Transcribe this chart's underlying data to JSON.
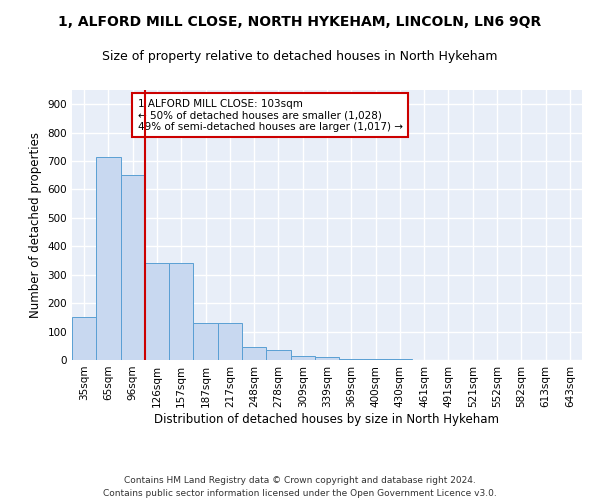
{
  "title": "1, ALFORD MILL CLOSE, NORTH HYKEHAM, LINCOLN, LN6 9QR",
  "subtitle": "Size of property relative to detached houses in North Hykeham",
  "xlabel": "Distribution of detached houses by size in North Hykeham",
  "ylabel": "Number of detached properties",
  "bar_values": [
    150,
    715,
    650,
    340,
    340,
    130,
    130,
    45,
    35,
    15,
    12,
    5,
    5,
    2,
    0,
    0,
    0,
    0,
    0,
    0,
    0
  ],
  "categories": [
    "35sqm",
    "65sqm",
    "96sqm",
    "126sqm",
    "157sqm",
    "187sqm",
    "217sqm",
    "248sqm",
    "278sqm",
    "309sqm",
    "339sqm",
    "369sqm",
    "400sqm",
    "430sqm",
    "461sqm",
    "491sqm",
    "521sqm",
    "552sqm",
    "582sqm",
    "613sqm",
    "643sqm"
  ],
  "bar_color": "#c8d8f0",
  "bar_edge_color": "#5a9fd4",
  "vline_color": "#cc0000",
  "annotation_text": "1 ALFORD MILL CLOSE: 103sqm\n← 50% of detached houses are smaller (1,028)\n49% of semi-detached houses are larger (1,017) →",
  "annotation_box_color": "white",
  "annotation_box_edge": "#cc0000",
  "ylim": [
    0,
    950
  ],
  "yticks": [
    0,
    100,
    200,
    300,
    400,
    500,
    600,
    700,
    800,
    900
  ],
  "footer_line1": "Contains HM Land Registry data © Crown copyright and database right 2024.",
  "footer_line2": "Contains public sector information licensed under the Open Government Licence v3.0.",
  "bg_color": "#e8eef8",
  "grid_color": "#ffffff",
  "title_fontsize": 10,
  "subtitle_fontsize": 9,
  "axis_label_fontsize": 8.5,
  "tick_fontsize": 7.5,
  "footer_fontsize": 6.5,
  "annotation_fontsize": 7.5,
  "vline_x_index": 2.5
}
